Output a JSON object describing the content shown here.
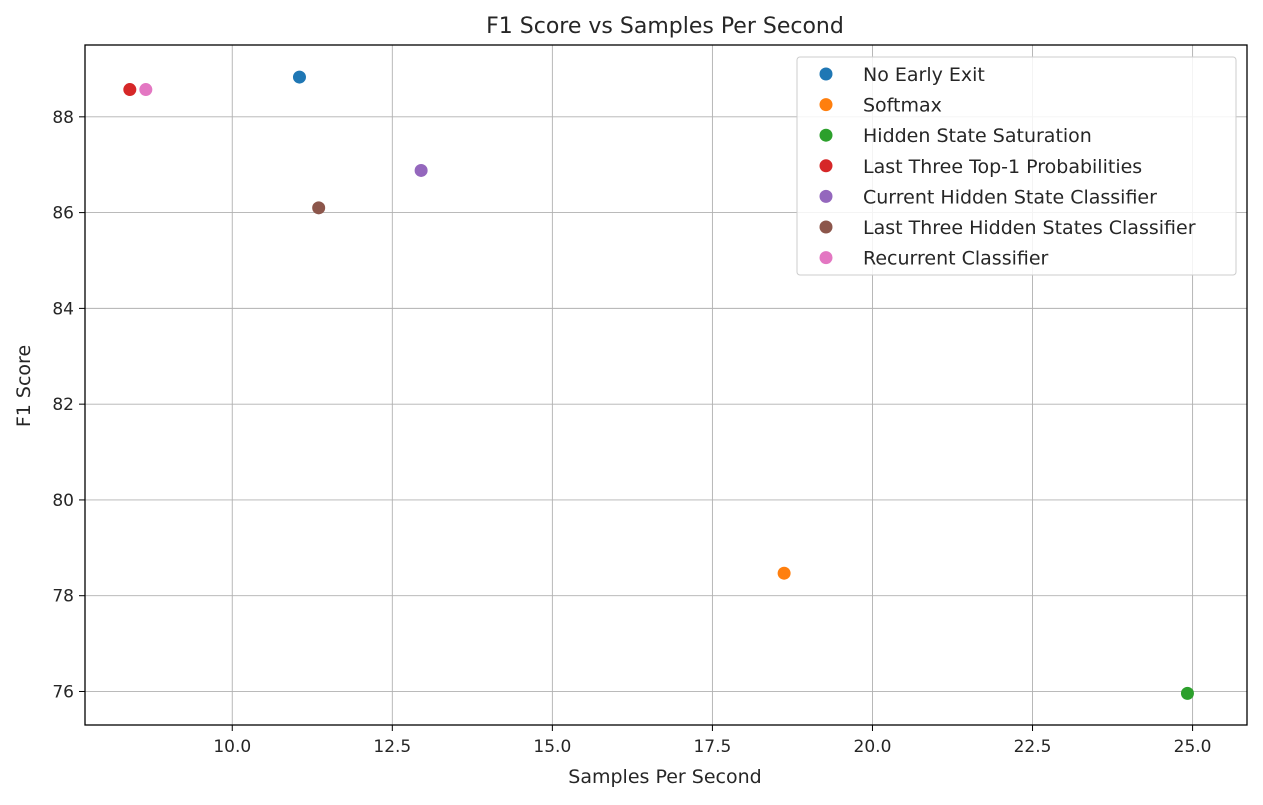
{
  "chart_data": {
    "type": "scatter",
    "title": "F1 Score vs Samples Per Second",
    "xlabel": "Samples Per Second",
    "ylabel": "F1 Score",
    "xlim": [
      7.7,
      25.85
    ],
    "ylim": [
      75.3,
      89.5
    ],
    "xticks": [
      10.0,
      12.5,
      15.0,
      17.5,
      20.0,
      22.5,
      25.0
    ],
    "xtick_labels": [
      "10.0",
      "12.5",
      "15.0",
      "17.5",
      "20.0",
      "22.5",
      "25.0"
    ],
    "yticks": [
      76,
      78,
      80,
      82,
      84,
      86,
      88
    ],
    "ytick_labels": [
      "76",
      "78",
      "80",
      "82",
      "84",
      "86",
      "88"
    ],
    "grid": true,
    "legend_position": "top-right",
    "series": [
      {
        "name": "No Early Exit",
        "color": "#1f77b4",
        "x": [
          11.05
        ],
        "y": [
          88.83
        ]
      },
      {
        "name": "Softmax",
        "color": "#ff7f0e",
        "x": [
          18.62
        ],
        "y": [
          78.47
        ]
      },
      {
        "name": "Hidden State Saturation",
        "color": "#2ca02c",
        "x": [
          24.92
        ],
        "y": [
          75.96
        ]
      },
      {
        "name": "Last Three Top-1 Probabilities",
        "color": "#d62728",
        "x": [
          8.4
        ],
        "y": [
          88.57
        ]
      },
      {
        "name": "Current Hidden State Classifier",
        "color": "#9467bd",
        "x": [
          12.95
        ],
        "y": [
          86.88
        ]
      },
      {
        "name": "Last Three Hidden States Classifier",
        "color": "#8c564b",
        "x": [
          11.35
        ],
        "y": [
          86.1
        ]
      },
      {
        "name": "Recurrent Classifier",
        "color": "#e377c2",
        "x": [
          8.65
        ],
        "y": [
          88.57
        ]
      }
    ]
  }
}
